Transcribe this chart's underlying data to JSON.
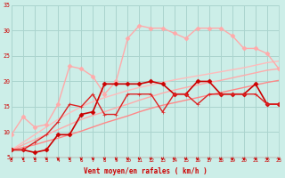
{
  "xlabel": "Vent moyen/en rafales ( km/h )",
  "xlim": [
    0,
    23
  ],
  "ylim": [
    5,
    35
  ],
  "yticks": [
    5,
    10,
    15,
    20,
    25,
    30,
    35
  ],
  "xticks": [
    0,
    1,
    2,
    3,
    4,
    5,
    6,
    7,
    8,
    9,
    10,
    11,
    12,
    13,
    14,
    15,
    16,
    17,
    18,
    19,
    20,
    21,
    22,
    23
  ],
  "bg_color": "#cceee8",
  "grid_color": "#aad4ce",
  "lines": [
    {
      "y": [
        6.5,
        7.0,
        7.5,
        8.2,
        8.8,
        9.5,
        10.2,
        11.0,
        11.8,
        12.5,
        13.2,
        14.0,
        14.7,
        15.3,
        15.8,
        16.3,
        16.8,
        17.3,
        17.8,
        18.3,
        18.8,
        19.3,
        19.8,
        20.2
      ],
      "color": "#ff8888",
      "lw": 1.0,
      "marker": null,
      "ms": 0,
      "zorder": 2
    },
    {
      "y": [
        6.5,
        7.5,
        8.5,
        9.5,
        10.5,
        11.5,
        12.5,
        13.3,
        14.0,
        14.8,
        15.5,
        16.3,
        17.0,
        17.7,
        18.3,
        18.8,
        19.3,
        19.8,
        20.2,
        20.7,
        21.2,
        21.7,
        22.2,
        22.5
      ],
      "color": "#ffaaaa",
      "lw": 1.0,
      "marker": null,
      "ms": 0,
      "zorder": 2
    },
    {
      "y": [
        6.5,
        8.0,
        9.5,
        11.0,
        12.5,
        13.8,
        15.0,
        16.0,
        16.8,
        17.5,
        18.2,
        18.8,
        19.3,
        19.8,
        20.3,
        20.7,
        21.1,
        21.5,
        21.9,
        22.3,
        22.7,
        23.2,
        23.7,
        24.0
      ],
      "color": "#ffbbbb",
      "lw": 1.0,
      "marker": null,
      "ms": 0,
      "zorder": 2
    },
    {
      "y": [
        6.5,
        6.5,
        6.0,
        6.5,
        9.5,
        9.5,
        13.5,
        14.0,
        19.5,
        19.5,
        19.5,
        19.5,
        20.0,
        19.5,
        17.5,
        17.5,
        20.0,
        20.0,
        17.5,
        17.5,
        17.5,
        19.5,
        15.5,
        15.5
      ],
      "color": "#cc0000",
      "lw": 1.2,
      "marker": "D",
      "ms": 2.5,
      "zorder": 5
    },
    {
      "y": [
        9.5,
        13.0,
        11.0,
        11.5,
        15.5,
        23.0,
        22.5,
        21.0,
        17.5,
        20.0,
        28.5,
        31.0,
        30.5,
        30.5,
        29.5,
        28.5,
        30.5,
        30.5,
        30.5,
        29.0,
        26.5,
        26.5,
        25.5,
        22.5
      ],
      "color": "#ffaaaa",
      "lw": 1.0,
      "marker": "D",
      "ms": 2.5,
      "zorder": 4
    },
    {
      "y": [
        6.5,
        6.5,
        8.0,
        9.5,
        12.0,
        15.5,
        15.0,
        17.5,
        13.5,
        13.5,
        17.5,
        17.5,
        17.5,
        14.0,
        17.5,
        17.5,
        15.5,
        17.5,
        17.5,
        17.5,
        17.5,
        17.5,
        15.5,
        15.5
      ],
      "color": "#dd2222",
      "lw": 1.0,
      "marker": "+",
      "ms": 3.5,
      "zorder": 5
    }
  ],
  "arrow_color": "#cc0000",
  "font_color": "#cc0000"
}
